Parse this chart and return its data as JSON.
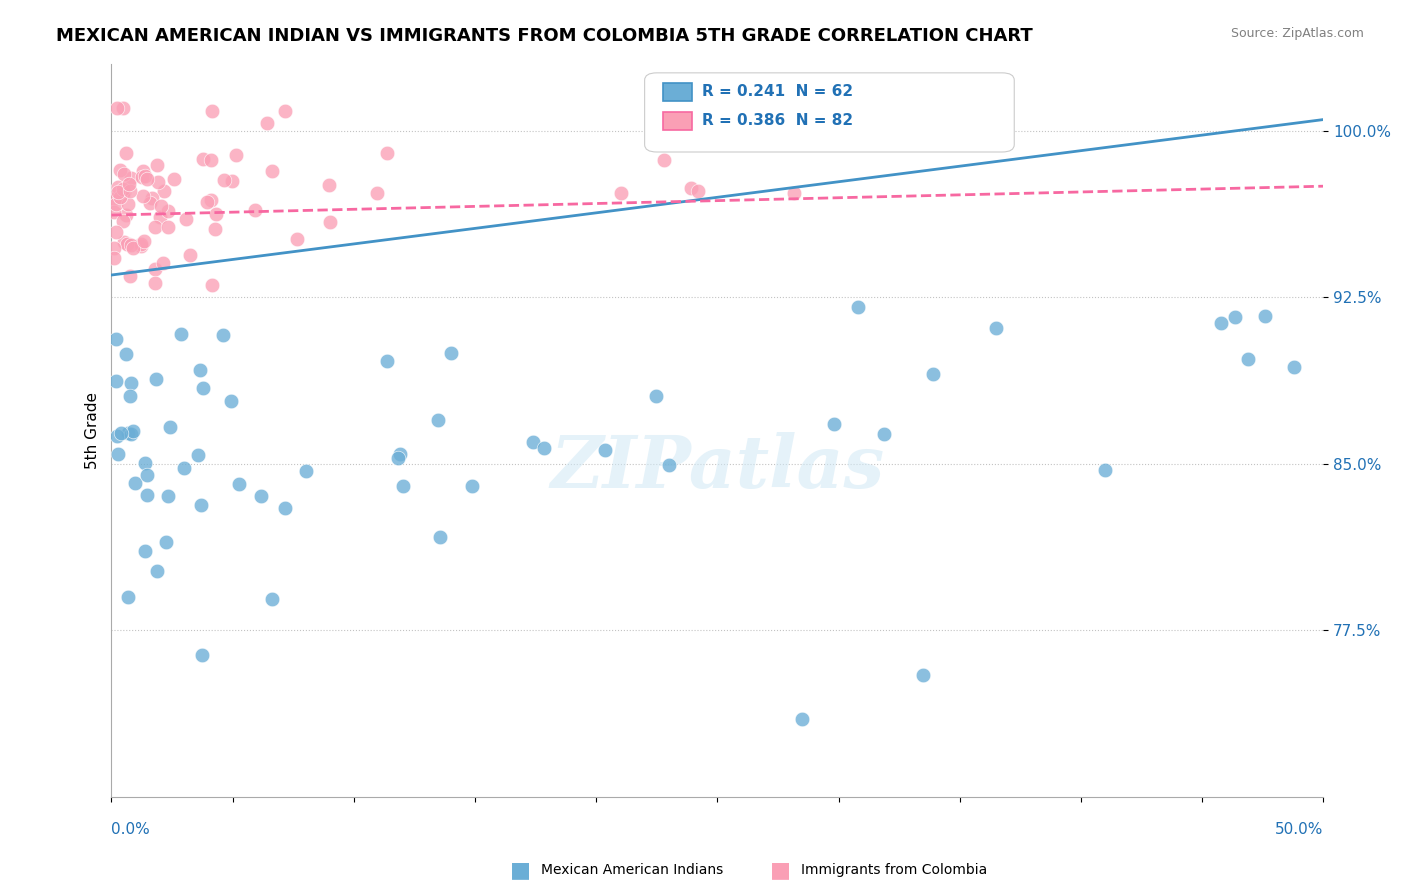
{
  "title": "MEXICAN AMERICAN INDIAN VS IMMIGRANTS FROM COLOMBIA 5TH GRADE CORRELATION CHART",
  "source": "Source: ZipAtlas.com",
  "ylabel": "5th Grade",
  "ytick_labels": [
    "100.0%",
    "92.5%",
    "85.0%",
    "77.5%"
  ],
  "ytick_values": [
    1.0,
    0.925,
    0.85,
    0.775
  ],
  "xlim": [
    0.0,
    0.5
  ],
  "ylim": [
    0.7,
    1.03
  ],
  "legend1_R": "0.241",
  "legend1_N": "62",
  "legend2_R": "0.386",
  "legend2_N": "82",
  "color_blue": "#6baed6",
  "color_pink": "#fa9fb5",
  "color_blue_line": "#4292c6",
  "color_pink_line": "#f768a1",
  "color_blue_text": "#2171b5",
  "legend_label1": "Mexican American Indians",
  "legend_label2": "Immigrants from Colombia",
  "blue_trend_x": [
    0.0,
    0.5
  ],
  "blue_trend_y": [
    0.935,
    1.005
  ],
  "pink_trend_x": [
    0.0,
    0.5
  ],
  "pink_trend_y": [
    0.962,
    0.975
  ]
}
